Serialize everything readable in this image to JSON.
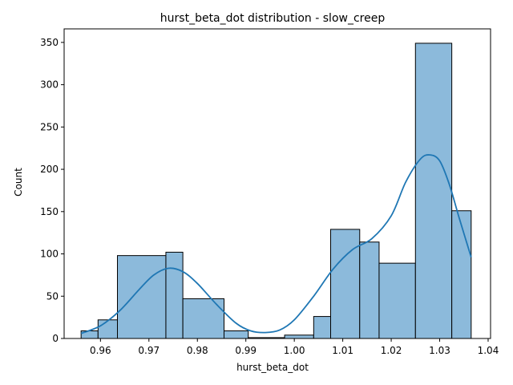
{
  "chart_data": {
    "type": "bar",
    "title": "hurst_beta_dot distribution - slow_creep",
    "xlabel": "hurst_beta_dot",
    "ylabel": "Count",
    "xlim": [
      0.9525,
      1.0405
    ],
    "ylim": [
      0,
      366
    ],
    "xticks": [
      0.96,
      0.97,
      0.98,
      0.99,
      1.0,
      1.01,
      1.02,
      1.03,
      1.04
    ],
    "xtick_labels": [
      "0.96",
      "0.97",
      "0.98",
      "0.99",
      "1.00",
      "1.01",
      "1.02",
      "1.03",
      "1.04"
    ],
    "yticks": [
      0,
      50,
      100,
      150,
      200,
      250,
      300,
      350
    ],
    "ytick_labels": [
      "0",
      "50",
      "100",
      "150",
      "200",
      "250",
      "300",
      "350"
    ],
    "bins": [
      {
        "x0": 0.956,
        "x1": 0.9595,
        "count": 9
      },
      {
        "x0": 0.9595,
        "x1": 0.9635,
        "count": 22
      },
      {
        "x0": 0.9635,
        "x1": 0.9735,
        "count": 98
      },
      {
        "x0": 0.9735,
        "x1": 0.977,
        "count": 102
      },
      {
        "x0": 0.977,
        "x1": 0.9855,
        "count": 47
      },
      {
        "x0": 0.9855,
        "x1": 0.9905,
        "count": 9
      },
      {
        "x0": 0.9905,
        "x1": 0.998,
        "count": 1
      },
      {
        "x0": 0.998,
        "x1": 1.004,
        "count": 4
      },
      {
        "x0": 1.004,
        "x1": 1.0075,
        "count": 26
      },
      {
        "x0": 1.0075,
        "x1": 1.0135,
        "count": 129
      },
      {
        "x0": 1.0135,
        "x1": 1.0175,
        "count": 114
      },
      {
        "x0": 1.0175,
        "x1": 1.025,
        "count": 89
      },
      {
        "x0": 1.025,
        "x1": 1.0325,
        "count": 349
      },
      {
        "x0": 1.0325,
        "x1": 1.0365,
        "count": 151
      }
    ],
    "kde": {
      "x": [
        0.956,
        0.96,
        0.964,
        0.968,
        0.971,
        0.974,
        0.977,
        0.98,
        0.984,
        0.988,
        0.991,
        0.994,
        0.997,
        1.0,
        1.004,
        1.008,
        1.012,
        1.016,
        1.02,
        1.023,
        1.026,
        1.028,
        1.03,
        1.032,
        1.034,
        1.0365
      ],
      "y": [
        6,
        15,
        33,
        58,
        75,
        83,
        79,
        65,
        40,
        18,
        9,
        7,
        10,
        22,
        50,
        82,
        105,
        118,
        145,
        185,
        212,
        217,
        210,
        182,
        143,
        96
      ]
    },
    "bar_color": "#8cbadb",
    "bar_edge_color": "#000000",
    "kde_color": "#1f77b4",
    "grid": false,
    "legend": "none"
  }
}
